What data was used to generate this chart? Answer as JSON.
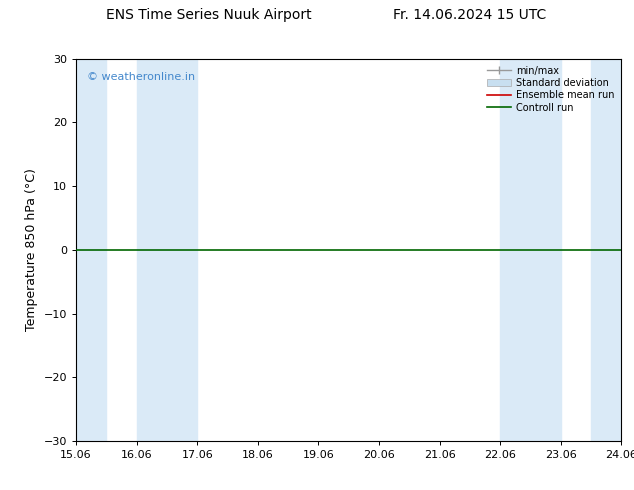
{
  "title_left": "ENS Time Series Nuuk Airport",
  "title_right": "Fr. 14.06.2024 15 UTC",
  "ylabel": "Temperature 850 hPa (°C)",
  "watermark": "© weatheronline.in",
  "watermark_color": "#4488cc",
  "xlim": [
    15.06,
    24.06
  ],
  "ylim": [
    -30,
    30
  ],
  "yticks": [
    -30,
    -20,
    -10,
    0,
    10,
    20,
    30
  ],
  "xtick_labels": [
    "15.06",
    "16.06",
    "17.06",
    "18.06",
    "19.06",
    "20.06",
    "21.06",
    "22.06",
    "23.06",
    "24.06"
  ],
  "xtick_positions": [
    15.06,
    16.06,
    17.06,
    18.06,
    19.06,
    20.06,
    21.06,
    22.06,
    23.06,
    24.06
  ],
  "shaded_regions": [
    [
      15.06,
      15.56
    ],
    [
      16.06,
      17.06
    ],
    [
      22.06,
      23.06
    ],
    [
      23.56,
      24.06
    ]
  ],
  "shaded_color": "#daeaf7",
  "line_y": 0.0,
  "line_color_control": "#006600",
  "line_color_ensemble": "#cc0000",
  "bg_color": "#ffffff",
  "title_fontsize": 10,
  "tick_fontsize": 8,
  "ylabel_fontsize": 9
}
